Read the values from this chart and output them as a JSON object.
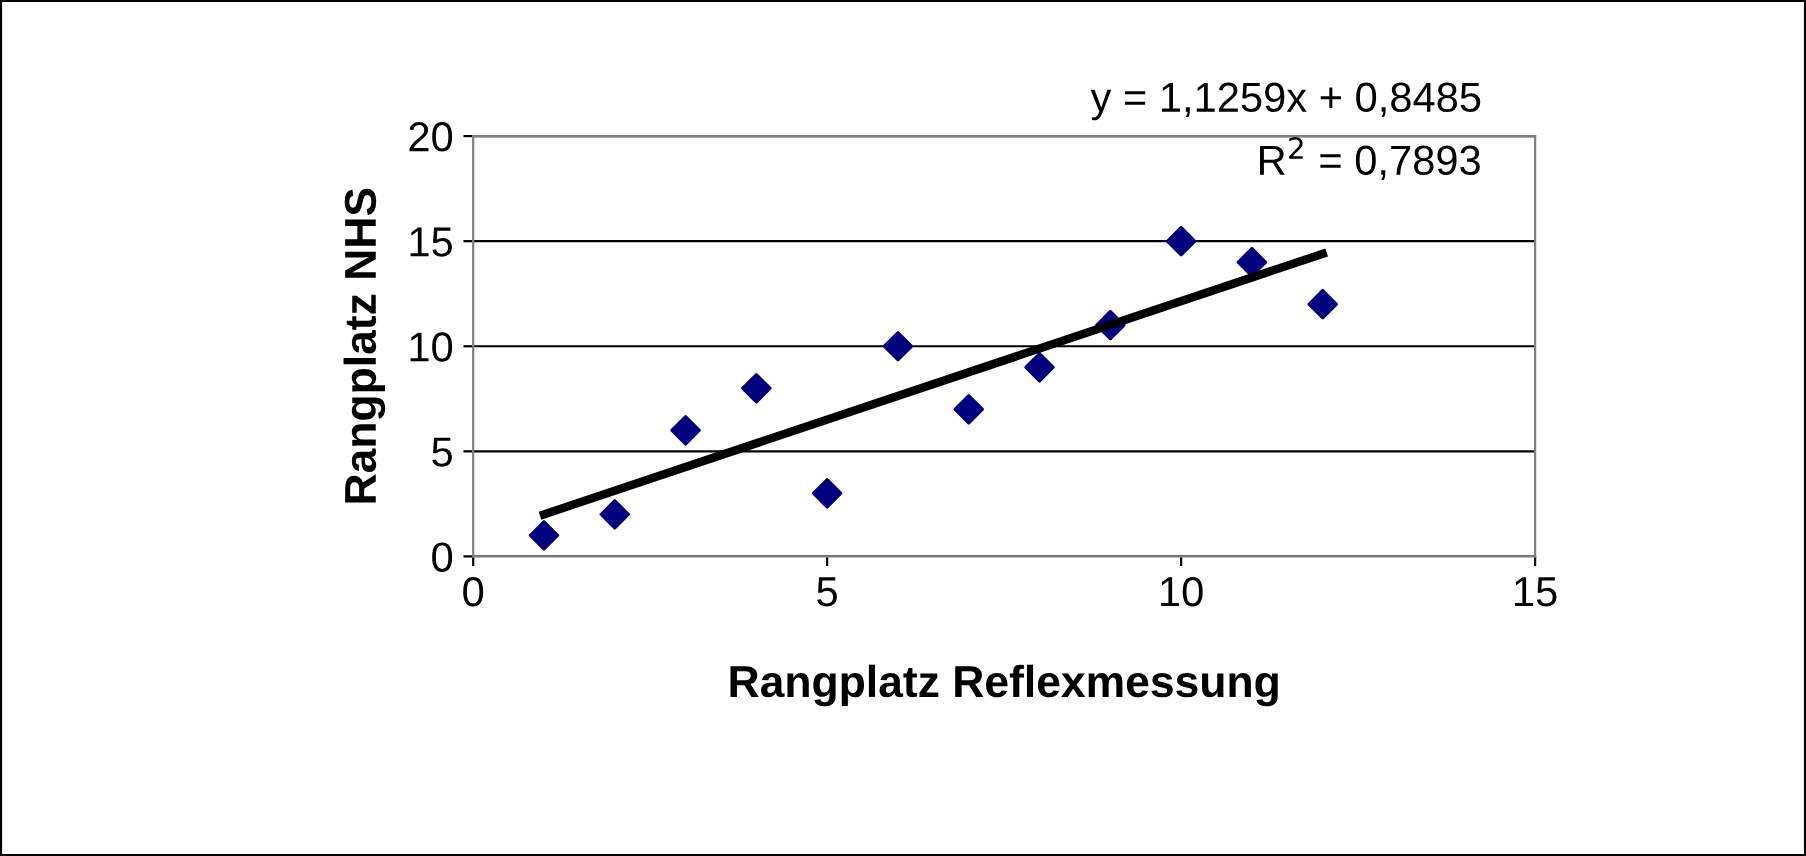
{
  "chart_data": {
    "type": "scatter",
    "xlabel": "Rangplatz Reflexmessung",
    "ylabel": "Rangplatz NHS",
    "x": [
      1,
      2,
      3,
      4,
      5,
      6,
      7,
      8,
      9,
      10,
      11,
      12
    ],
    "series": [
      {
        "color": "#00007f",
        "marker": "diamond",
        "values": [
          1,
          2,
          6,
          8,
          3,
          10,
          7,
          9,
          11,
          15,
          14,
          12
        ]
      },
      {
        "type": "line",
        "color": "#000000",
        "x": [
          1,
          12
        ],
        "values": [
          2.0,
          14.4
        ]
      }
    ],
    "annotations": [
      "y = 1,1259x + 0,8485",
      "R$^{2}$ = 0,7893"
    ],
    "xlim": [
      0,
      15
    ],
    "xticks": [
      0,
      5,
      10,
      15
    ],
    "ylim": [
      0,
      20
    ],
    "yticks": [
      0,
      5,
      10,
      15,
      20
    ],
    "grid": "y",
    "legend": false
  }
}
